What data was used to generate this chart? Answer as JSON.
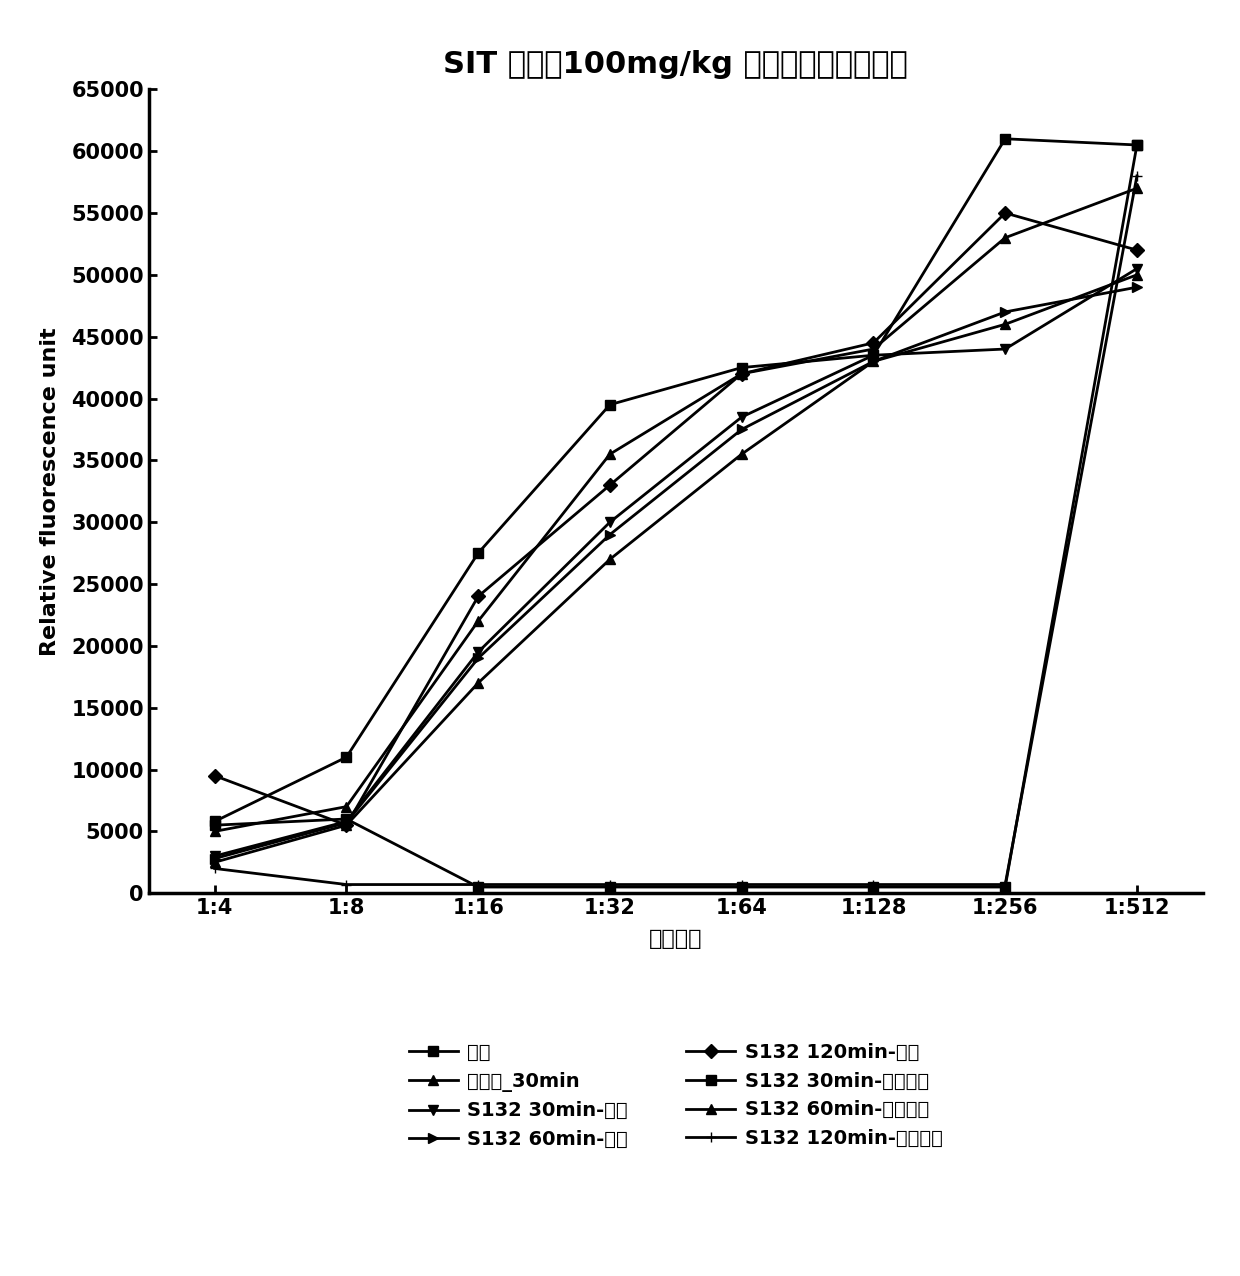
{
  "title": "SIT 剂量：100mg/kg 口服或腹腔注射给药",
  "xlabel": "血清梯度",
  "ylabel": "Relative fluorescence unit",
  "x_labels": [
    "1:4",
    "1:8",
    "1:16",
    "1:32",
    "1:64",
    "1:128",
    "1:256",
    "1:512"
  ],
  "x_positions": [
    1,
    2,
    3,
    4,
    5,
    6,
    7,
    8
  ],
  "ylim": [
    0,
    65000
  ],
  "yticks": [
    0,
    5000,
    10000,
    15000,
    20000,
    25000,
    30000,
    35000,
    40000,
    45000,
    50000,
    55000,
    60000,
    65000
  ],
  "series": [
    {
      "label": "空白",
      "marker": "s",
      "values": [
        5500,
        6000,
        500,
        500,
        500,
        500,
        500,
        60500
      ]
    },
    {
      "label": "异烟肼_30min",
      "marker": "^",
      "values": [
        2500,
        5500,
        17000,
        27000,
        35500,
        43000,
        46000,
        50000
      ]
    },
    {
      "label": "S132 30min-口服",
      "marker": "v",
      "values": [
        3000,
        5800,
        19500,
        30000,
        38500,
        43500,
        44000,
        50500
      ]
    },
    {
      "label": "S132 60min-口服",
      "marker": ">",
      "values": [
        2800,
        5700,
        19000,
        29000,
        37500,
        43000,
        47000,
        49000
      ]
    },
    {
      "label": "S132 120min-口服",
      "marker": "D",
      "values": [
        9500,
        5500,
        24000,
        33000,
        42000,
        44500,
        55000,
        52000
      ]
    },
    {
      "label": "S132 30min-腹腔注射",
      "marker": "s",
      "values": [
        5800,
        11000,
        27500,
        39500,
        42500,
        43500,
        61000,
        60500
      ]
    },
    {
      "label": "S132 60min-腹腔注射",
      "marker": "^",
      "values": [
        5000,
        7000,
        22000,
        35500,
        42000,
        44000,
        53000,
        57000
      ]
    },
    {
      "label": "S132 120min-腹腔注射",
      "marker": "+",
      "values": [
        2000,
        700,
        700,
        700,
        700,
        700,
        700,
        58000
      ]
    }
  ],
  "color": "#000000",
  "linewidth": 2.0,
  "markersize": 7,
  "background_color": "#ffffff",
  "title_fontsize": 22,
  "label_fontsize": 16,
  "tick_fontsize": 15,
  "legend_fontsize": 14,
  "legend_left": [
    "空白",
    "异烟肼_30min",
    "S132 30min-口服",
    "S132 60min-口服",
    "S132 120min-口服"
  ],
  "legend_right": [
    "S132 30min-腹腔注射",
    "S132 60min-腹腔注射",
    "S132 120min-腹腔注射"
  ]
}
